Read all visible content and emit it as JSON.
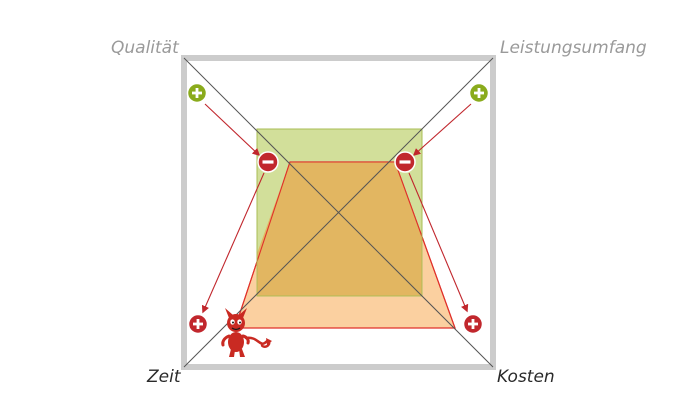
{
  "labels": {
    "top_left": "Qualität",
    "top_right": "Leistungsumfang",
    "bottom_left": "Zeit",
    "bottom_right": "Kosten"
  },
  "colors": {
    "frame": "#cccccc",
    "diagonal": "#555555",
    "green_square_fill": "#d2df9a",
    "green_square_stroke": "#a8bd55",
    "orange_trapezoid_fill": "#fbd0a0",
    "orange_trapezoid_stroke": "#e0312b",
    "overlap_fill": "#e2b661",
    "arrow": "#c1272d",
    "minus_badge": "#c1272d",
    "plus_badge_green": "#8aab1c",
    "plus_badge_red": "#c1272d",
    "devil": "#c92a22",
    "label_muted": "#9a9a9a",
    "label_dark": "#2a2a2a"
  },
  "icons": {
    "plus_top_left": "plus-icon",
    "plus_top_right": "plus-icon",
    "minus_left": "minus-icon",
    "minus_right": "minus-icon",
    "plus_bottom_left": "plus-icon",
    "plus_bottom_right": "plus-icon",
    "mascot": "devil-icon"
  }
}
